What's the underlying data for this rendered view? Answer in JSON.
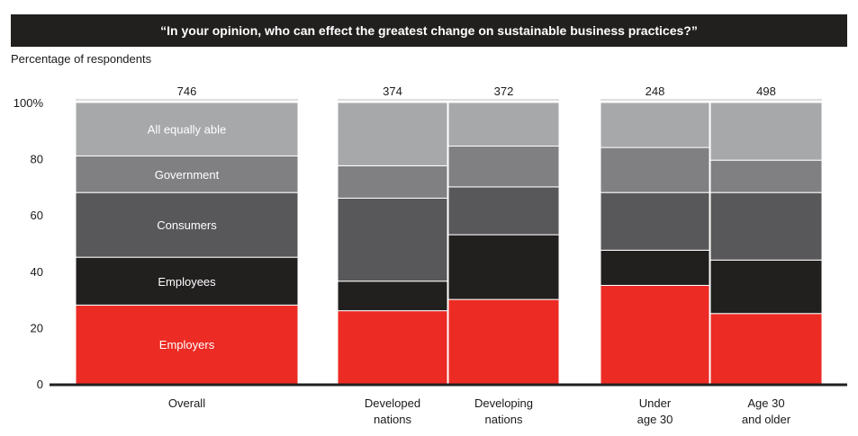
{
  "title": "“In your opinion, who can effect the greatest change on sustainable business practices?”",
  "subtitle": "Percentage of respondents",
  "chart_data": {
    "type": "bar",
    "stacked": true,
    "percent": true,
    "title": "“In your opinion, who can effect the greatest change on sustainable business practices?”",
    "ylabel": "Percentage of respondents",
    "ylim": [
      0,
      100
    ],
    "yticks": [
      "0",
      "20",
      "40",
      "60",
      "80",
      "100%"
    ],
    "categories": [
      {
        "label": [
          "Overall"
        ],
        "n": "746"
      },
      {
        "label": [
          "Developed",
          "nations"
        ],
        "n": "374"
      },
      {
        "label": [
          "Developing",
          "nations"
        ],
        "n": "372"
      },
      {
        "label": [
          "Under",
          "age 30"
        ],
        "n": "248"
      },
      {
        "label": [
          "Age 30",
          "and older"
        ],
        "n": "498"
      }
    ],
    "series": [
      {
        "name": "Employers",
        "color": "#ec2b24",
        "values": [
          28,
          26,
          30,
          35,
          25
        ]
      },
      {
        "name": "Employees",
        "color": "#221f1f",
        "values": [
          17,
          10.5,
          23,
          12.5,
          19
        ]
      },
      {
        "name": "Consumers",
        "color": "#58585a",
        "values": [
          23,
          29.5,
          17,
          20.5,
          24
        ]
      },
      {
        "name": "Government",
        "color": "#808083",
        "values": [
          13,
          11.5,
          14.5,
          16,
          11.5
        ]
      },
      {
        "name": "All equally able",
        "color": "#a7a8aa",
        "values": [
          19,
          22.5,
          15.5,
          16,
          20.5
        ]
      }
    ],
    "inside_labels_on": "Overall",
    "grid": false
  }
}
